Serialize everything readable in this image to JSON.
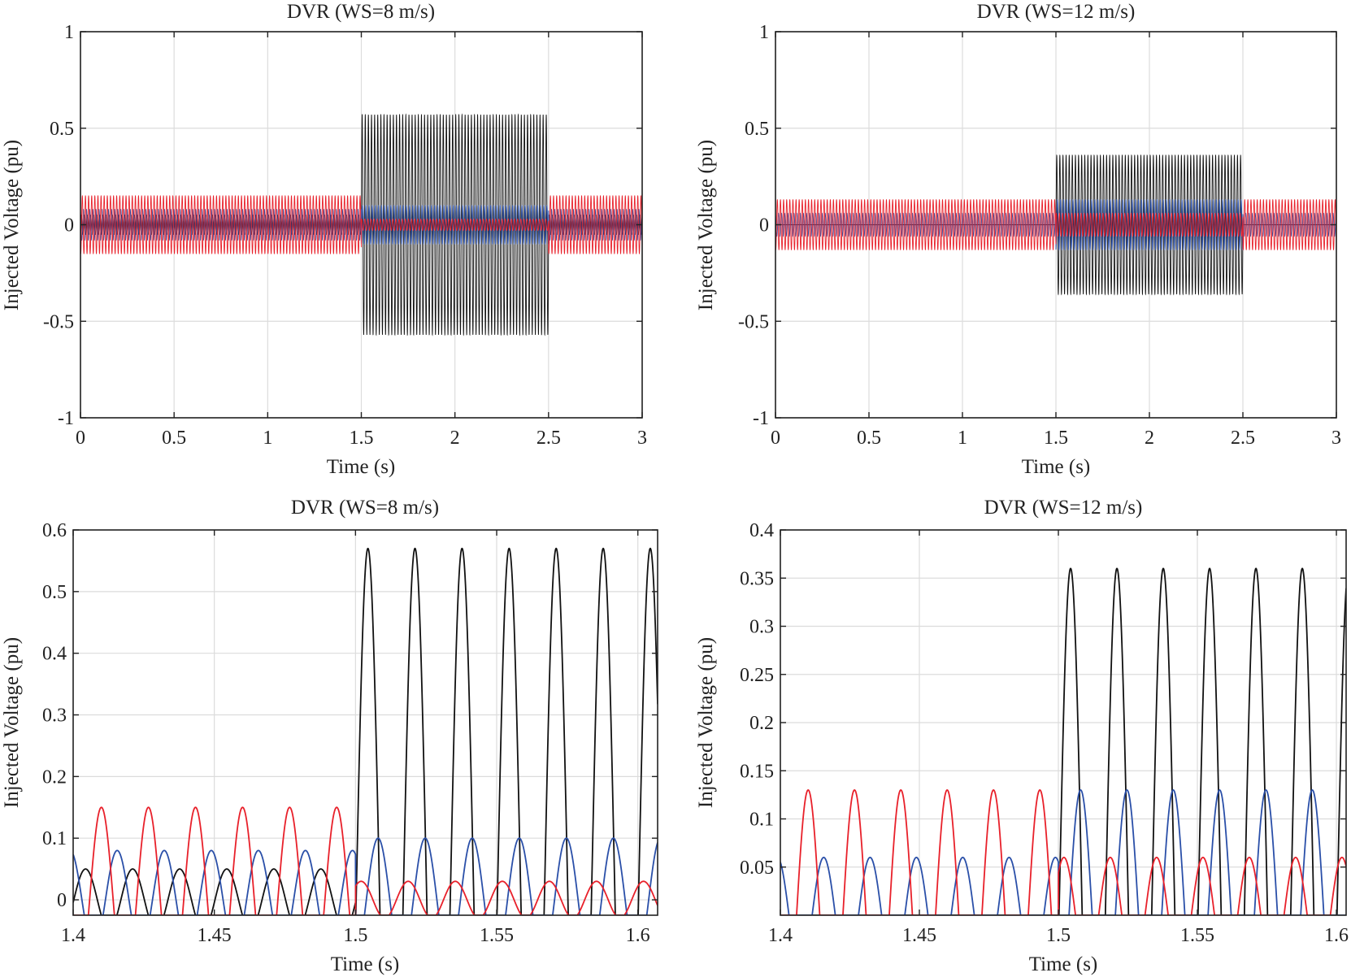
{
  "chart_data": [
    {
      "type": "line",
      "title": "DVR (WS=8 m/s)",
      "xlabel": "Time (s)",
      "ylabel": "Injected Voltage (pu)",
      "xlim": [
        0,
        3
      ],
      "ylim": [
        -1,
        1
      ],
      "xticks": [
        0,
        0.5,
        1,
        1.5,
        2,
        2.5,
        3
      ],
      "xtick_labels": [
        "0",
        "0.5",
        "1",
        "1.5",
        "2",
        "2.5",
        "3"
      ],
      "yticks": [
        -1,
        -0.5,
        0,
        0.5,
        1
      ],
      "ytick_labels": [
        "-1",
        "-0.5",
        "0",
        "0.5",
        "1"
      ],
      "grid": true,
      "frequency_hz": 60,
      "fault_window_s": [
        1.5,
        2.5
      ],
      "series": [
        {
          "color": "#111111",
          "amplitude_normal": 0.05,
          "amplitude_fault": 0.57,
          "peak_time_normal": 1.4044,
          "peak_time_fault": 1.5044
        },
        {
          "color": "#2a4fa8",
          "amplitude_normal": 0.08,
          "amplitude_fault": 0.1,
          "peak_time_normal": 1.4156,
          "peak_time_fault": 1.508
        },
        {
          "color": "#e8202a",
          "amplitude_normal": 0.15,
          "amplitude_fault": 0.03,
          "peak_time_normal": 1.41,
          "peak_time_fault": 1.502
        }
      ]
    },
    {
      "type": "line",
      "title": "DVR (WS=12 m/s)",
      "xlabel": "Time (s)",
      "ylabel": "Injected Voltage (pu)",
      "xlim": [
        0,
        3
      ],
      "ylim": [
        -1,
        1
      ],
      "xticks": [
        0,
        0.5,
        1,
        1.5,
        2,
        2.5,
        3
      ],
      "xtick_labels": [
        "0",
        "0.5",
        "1",
        "1.5",
        "2",
        "2.5",
        "3"
      ],
      "yticks": [
        -1,
        -0.5,
        0,
        0.5,
        1
      ],
      "ytick_labels": [
        "-1",
        "-0.5",
        "0",
        "0.5",
        "1"
      ],
      "grid": true,
      "frequency_hz": 60,
      "fault_window_s": [
        1.5,
        2.5
      ],
      "series": [
        {
          "color": "#111111",
          "amplitude_normal": 0.0,
          "amplitude_fault": 0.36,
          "peak_time_normal": 1.4044,
          "peak_time_fault": 1.5044
        },
        {
          "color": "#2a4fa8",
          "amplitude_normal": 0.06,
          "amplitude_fault": 0.13,
          "peak_time_normal": 1.4156,
          "peak_time_fault": 1.508
        },
        {
          "color": "#e8202a",
          "amplitude_normal": 0.13,
          "amplitude_fault": 0.06,
          "peak_time_normal": 1.41,
          "peak_time_fault": 1.502
        }
      ]
    },
    {
      "type": "line",
      "title": "DVR (WS=8 m/s)",
      "xlabel": "Time (s)",
      "ylabel": "Injected Voltage (pu)",
      "xlim": [
        1.4,
        1.607
      ],
      "ylim": [
        -0.025,
        0.6
      ],
      "xticks": [
        1.4,
        1.45,
        1.5,
        1.55,
        1.6
      ],
      "xtick_labels": [
        "1.4",
        "1.45",
        "1.5",
        "1.55",
        "1.6"
      ],
      "yticks": [
        0,
        0.1,
        0.2,
        0.3,
        0.4,
        0.5,
        0.6
      ],
      "ytick_labels": [
        "0",
        "0.1",
        "0.2",
        "0.3",
        "0.4",
        "0.5",
        "0.6"
      ],
      "grid": true,
      "frequency_hz": 60,
      "fault_window_s": [
        1.5,
        2.5
      ],
      "series": [
        {
          "color": "#111111",
          "amplitude_normal": 0.05,
          "amplitude_fault": 0.57,
          "peak_time_normal": 1.4044,
          "peak_time_fault": 1.5044
        },
        {
          "color": "#2a4fa8",
          "amplitude_normal": 0.08,
          "amplitude_fault": 0.1,
          "peak_time_normal": 1.4156,
          "peak_time_fault": 1.508
        },
        {
          "color": "#e8202a",
          "amplitude_normal": 0.15,
          "amplitude_fault": 0.03,
          "peak_time_normal": 1.41,
          "peak_time_fault": 1.502
        }
      ]
    },
    {
      "type": "line",
      "title": "DVR (WS=12 m/s)",
      "xlabel": "Time (s)",
      "ylabel": "Injected Voltage (pu)",
      "xlim": [
        1.4,
        1.6035
      ],
      "ylim": [
        0,
        0.4
      ],
      "xticks": [
        1.4,
        1.45,
        1.5,
        1.55,
        1.6
      ],
      "xtick_labels": [
        "1.4",
        "1.45",
        "1.5",
        "1.55",
        "1.6"
      ],
      "yticks": [
        0.05,
        0.1,
        0.15,
        0.2,
        0.25,
        0.3,
        0.35,
        0.4
      ],
      "ytick_labels": [
        "0.05",
        "0.1",
        "0.15",
        "0.2",
        "0.25",
        "0.3",
        "0.35",
        "0.4"
      ],
      "grid": true,
      "frequency_hz": 60,
      "fault_window_s": [
        1.5,
        2.5
      ],
      "series": [
        {
          "color": "#111111",
          "amplitude_normal": 0.0,
          "amplitude_fault": 0.36,
          "peak_time_normal": 1.4044,
          "peak_time_fault": 1.5044
        },
        {
          "color": "#2a4fa8",
          "amplitude_normal": 0.06,
          "amplitude_fault": 0.13,
          "peak_time_normal": 1.4156,
          "peak_time_fault": 1.508
        },
        {
          "color": "#e8202a",
          "amplitude_normal": 0.13,
          "amplitude_fault": 0.06,
          "peak_time_normal": 1.41,
          "peak_time_fault": 1.502
        }
      ]
    }
  ]
}
